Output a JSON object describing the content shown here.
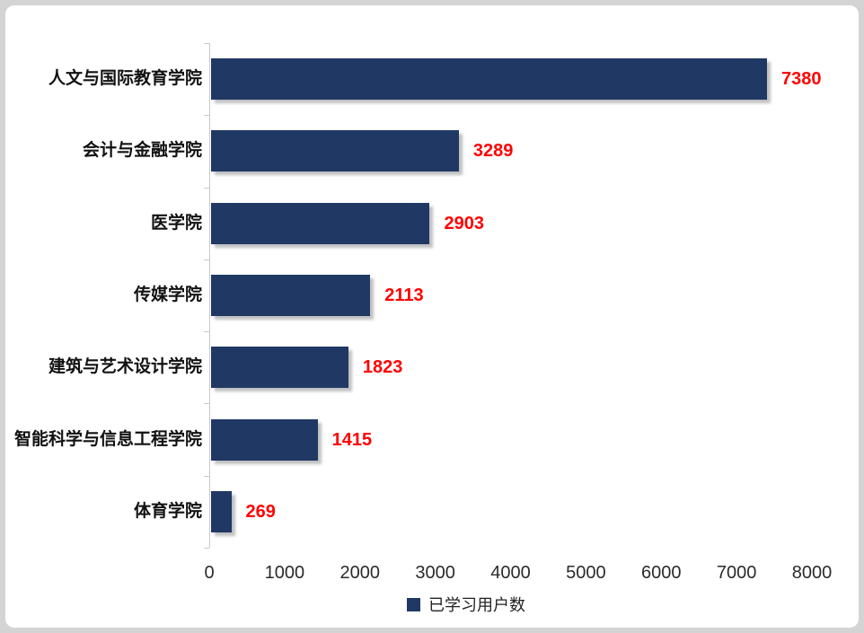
{
  "colors": {
    "bar": "#203864",
    "value_label": "#ff0000",
    "axis": "#c9c9c9",
    "tick_label": "#2b2b2b",
    "category_label": "#111111",
    "frame_bg": "#d4d4d4",
    "card_bg": "#ffffff"
  },
  "chart_data": {
    "type": "bar",
    "orientation": "horizontal",
    "title": "",
    "categories": [
      "人文与国际教育学院",
      "会计与金融学院",
      "医学院",
      "传媒学院",
      "建筑与艺术设计学院",
      "智能科学与信息工程学院",
      "体育学院"
    ],
    "values": [
      7380,
      3289,
      2903,
      2113,
      1823,
      1415,
      269
    ],
    "series": [
      {
        "name": "已学习用户数",
        "values": [
          7380,
          3289,
          2903,
          2113,
          1823,
          1415,
          269
        ]
      }
    ],
    "xlabel": "",
    "ylabel": "",
    "xlim": [
      0,
      8000
    ],
    "x_ticks": [
      0,
      1000,
      2000,
      3000,
      4000,
      5000,
      6000,
      7000,
      8000
    ],
    "grid": false,
    "data_labels": true,
    "legend": {
      "label": "已学习用户数",
      "position": "bottom"
    }
  }
}
